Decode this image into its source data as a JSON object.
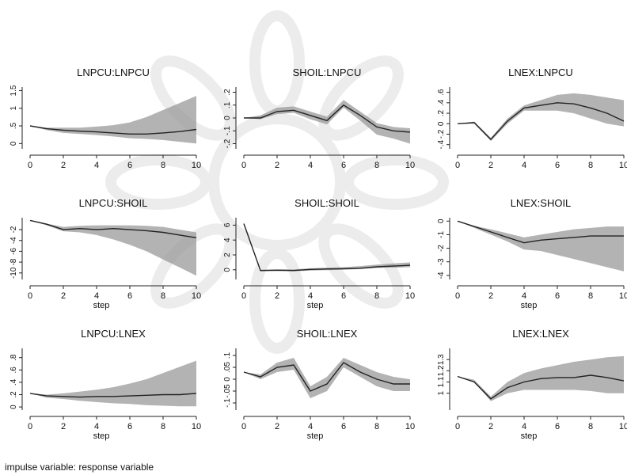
{
  "caption": "impulse variable: response variable",
  "chart_data": [
    {
      "type": "area",
      "title": "LNPCU:LNPCU",
      "xlabel": "",
      "x": [
        0,
        1,
        2,
        3,
        4,
        5,
        6,
        7,
        8,
        9,
        10
      ],
      "xticks": [
        0,
        2,
        4,
        6,
        8,
        10
      ],
      "ylim": [
        -0.15,
        1.6
      ],
      "yticks": [
        {
          "v": 0,
          "t": "0"
        },
        {
          "v": 0.5,
          "t": ".5"
        },
        {
          "v": 1,
          "t": "1"
        },
        {
          "v": 1.5,
          "t": "1.5"
        }
      ],
      "line": [
        0.5,
        0.42,
        0.38,
        0.35,
        0.33,
        0.3,
        0.27,
        0.27,
        0.3,
        0.34,
        0.4
      ],
      "lower": [
        0.5,
        0.38,
        0.3,
        0.27,
        0.24,
        0.2,
        0.15,
        0.13,
        0.1,
        0.05,
        0.0
      ],
      "upper": [
        0.5,
        0.45,
        0.45,
        0.45,
        0.48,
        0.52,
        0.6,
        0.75,
        0.95,
        1.15,
        1.35
      ]
    },
    {
      "type": "area",
      "title": "SHOIL:LNPCU",
      "xlabel": "",
      "x": [
        0,
        1,
        2,
        3,
        4,
        5,
        6,
        7,
        8,
        9,
        10
      ],
      "xticks": [
        0,
        2,
        4,
        6,
        8,
        10
      ],
      "ylim": [
        -0.24,
        0.24
      ],
      "yticks": [
        {
          "v": -0.2,
          "t": "-.2"
        },
        {
          "v": -0.1,
          "t": "-.1"
        },
        {
          "v": 0,
          "t": "0"
        },
        {
          "v": 0.1,
          "t": ".1"
        },
        {
          "v": 0.2,
          "t": ".2"
        }
      ],
      "line": [
        0,
        0,
        0.05,
        0.06,
        0.02,
        -0.02,
        0.1,
        0.02,
        -0.07,
        -0.1,
        -0.11
      ],
      "lower": [
        0,
        -0.01,
        0.03,
        0.04,
        -0.01,
        -0.05,
        0.08,
        -0.02,
        -0.13,
        -0.16,
        -0.2
      ],
      "upper": [
        0,
        0.02,
        0.08,
        0.09,
        0.05,
        0.01,
        0.14,
        0.05,
        -0.04,
        -0.07,
        -0.08
      ]
    },
    {
      "type": "area",
      "title": "LNEX:LNPCU",
      "xlabel": "",
      "x": [
        0,
        1,
        2,
        3,
        4,
        5,
        6,
        7,
        8,
        9,
        10
      ],
      "xticks": [
        0,
        2,
        4,
        6,
        8,
        10
      ],
      "ylim": [
        -0.48,
        0.7
      ],
      "yticks": [
        {
          "v": -0.4,
          "t": "-.4"
        },
        {
          "v": -0.2,
          "t": "-.2"
        },
        {
          "v": 0,
          "t": "0"
        },
        {
          "v": 0.2,
          "t": ".2"
        },
        {
          "v": 0.4,
          "t": ".4"
        },
        {
          "v": 0.6,
          "t": ".6"
        }
      ],
      "line": [
        0,
        0.02,
        -0.3,
        0.05,
        0.3,
        0.35,
        0.4,
        0.38,
        0.3,
        0.2,
        0.05
      ],
      "lower": [
        0,
        0,
        -0.33,
        0.0,
        0.25,
        0.25,
        0.25,
        0.2,
        0.1,
        0.0,
        -0.05
      ],
      "upper": [
        0,
        0.04,
        -0.27,
        0.1,
        0.35,
        0.45,
        0.55,
        0.58,
        0.55,
        0.5,
        0.45
      ]
    },
    {
      "type": "area",
      "title": "LNPCU:SHOIL",
      "xlabel": "step",
      "x": [
        0,
        1,
        2,
        3,
        4,
        5,
        6,
        7,
        8,
        9,
        10
      ],
      "xticks": [
        0,
        2,
        4,
        6,
        8,
        10
      ],
      "ylim": [
        -11.2,
        0.2
      ],
      "yticks": [
        {
          "v": -2,
          "t": "-2"
        },
        {
          "v": -4,
          "t": "-4"
        },
        {
          "v": -6,
          "t": "-6"
        },
        {
          "v": -8,
          "t": "-8"
        },
        {
          "v": -10,
          "t": "-10"
        }
      ],
      "line": [
        -0.3,
        -1,
        -2,
        -1.8,
        -2,
        -1.8,
        -2,
        -2.2,
        -2.5,
        -3,
        -3.5
      ],
      "lower": [
        -0.3,
        -1.2,
        -2.3,
        -2.5,
        -3,
        -3.8,
        -4.8,
        -6,
        -7.5,
        -9,
        -10.5
      ],
      "upper": [
        -0.3,
        -0.9,
        -1.5,
        -1.3,
        -1.2,
        -1.2,
        -1.2,
        -1.3,
        -1.5,
        -2,
        -2.5
      ]
    },
    {
      "type": "area",
      "title": "SHOIL:SHOIL",
      "xlabel": "step",
      "x": [
        0,
        1,
        2,
        3,
        4,
        5,
        6,
        7,
        8,
        9,
        10
      ],
      "xticks": [
        0,
        2,
        4,
        6,
        8,
        10
      ],
      "ylim": [
        -1.3,
        7
      ],
      "yticks": [
        {
          "v": 0,
          "t": "0"
        },
        {
          "v": 2,
          "t": "2"
        },
        {
          "v": 4,
          "t": "4"
        },
        {
          "v": 6,
          "t": "6"
        }
      ],
      "line": [
        6.2,
        -0.1,
        -0.05,
        -0.1,
        0.05,
        0.1,
        0.15,
        0.2,
        0.4,
        0.5,
        0.6
      ],
      "lower": [
        6.2,
        -0.2,
        -0.15,
        -0.2,
        -0.1,
        -0.05,
        0,
        0.1,
        0.25,
        0.3,
        0.35
      ],
      "upper": [
        6.2,
        0,
        0.05,
        0.05,
        0.2,
        0.3,
        0.35,
        0.5,
        0.7,
        0.85,
        1.0
      ]
    },
    {
      "type": "area",
      "title": "LNEX:SHOIL",
      "xlabel": "step",
      "x": [
        0,
        1,
        2,
        3,
        4,
        5,
        6,
        7,
        8,
        9,
        10
      ],
      "xticks": [
        0,
        2,
        4,
        6,
        8,
        10
      ],
      "ylim": [
        -4.3,
        0.25
      ],
      "yticks": [
        {
          "v": 0,
          "t": "0"
        },
        {
          "v": -1,
          "t": "-1"
        },
        {
          "v": -2,
          "t": "-2"
        },
        {
          "v": -3,
          "t": "-3"
        },
        {
          "v": -4,
          "t": "-4"
        }
      ],
      "line": [
        0,
        -0.4,
        -0.8,
        -1.2,
        -1.6,
        -1.4,
        -1.3,
        -1.2,
        -1.1,
        -1.1,
        -1.1
      ],
      "lower": [
        0,
        -0.5,
        -1,
        -1.5,
        -2.1,
        -2.2,
        -2.5,
        -2.8,
        -3.1,
        -3.4,
        -3.7
      ],
      "upper": [
        0,
        -0.35,
        -0.6,
        -0.9,
        -1.2,
        -1.0,
        -0.8,
        -0.6,
        -0.5,
        -0.4,
        -0.4
      ]
    },
    {
      "type": "area",
      "title": "LNPCU:LNEX",
      "xlabel": "step",
      "x": [
        0,
        1,
        2,
        3,
        4,
        5,
        6,
        7,
        8,
        9,
        10
      ],
      "xticks": [
        0,
        2,
        4,
        6,
        8,
        10
      ],
      "ylim": [
        -0.05,
        0.95
      ],
      "yticks": [
        {
          "v": 0,
          "t": "0"
        },
        {
          "v": 0.2,
          "t": ".2"
        },
        {
          "v": 0.4,
          "t": ".4"
        },
        {
          "v": 0.6,
          "t": ".6"
        },
        {
          "v": 0.8,
          "t": ".8"
        }
      ],
      "line": [
        0.22,
        0.18,
        0.17,
        0.16,
        0.17,
        0.17,
        0.18,
        0.19,
        0.2,
        0.2,
        0.22
      ],
      "lower": [
        0.22,
        0.15,
        0.13,
        0.1,
        0.08,
        0.06,
        0.05,
        0.03,
        0.02,
        0.01,
        0.01
      ],
      "upper": [
        0.22,
        0.2,
        0.22,
        0.25,
        0.28,
        0.32,
        0.38,
        0.45,
        0.55,
        0.65,
        0.75
      ]
    },
    {
      "type": "area",
      "title": "SHOIL:LNEX",
      "xlabel": "step",
      "x": [
        0,
        1,
        2,
        3,
        4,
        5,
        6,
        7,
        8,
        9,
        10
      ],
      "xticks": [
        0,
        2,
        4,
        6,
        8,
        10
      ],
      "ylim": [
        -0.13,
        0.13
      ],
      "yticks": [
        {
          "v": -0.1,
          "t": "-.1"
        },
        {
          "v": -0.05,
          "t": "-.05"
        },
        {
          "v": 0,
          "t": "0"
        },
        {
          "v": 0.05,
          "t": ".05"
        },
        {
          "v": 0.1,
          "t": ".1"
        }
      ],
      "line": [
        0.03,
        0.01,
        0.05,
        0.06,
        -0.05,
        -0.02,
        0.07,
        0.03,
        0,
        -0.02,
        -0.02
      ],
      "lower": [
        0.03,
        0,
        0.03,
        0.04,
        -0.08,
        -0.05,
        0.05,
        0.01,
        -0.03,
        -0.05,
        -0.05
      ],
      "upper": [
        0.03,
        0.02,
        0.07,
        0.09,
        -0.03,
        0.01,
        0.09,
        0.06,
        0.03,
        0.01,
        0
      ]
    },
    {
      "type": "area",
      "title": "LNEX:LNEX",
      "xlabel": "step",
      "x": [
        0,
        1,
        2,
        3,
        4,
        5,
        6,
        7,
        8,
        9,
        10
      ],
      "xticks": [
        0,
        2,
        4,
        6,
        8,
        10
      ],
      "ylim": [
        0.85,
        1.4
      ],
      "yticks": [
        {
          "v": 1.0,
          "t": "1"
        },
        {
          "v": 1.1,
          "t": "1.1"
        },
        {
          "v": 1.2,
          "t": "1.2"
        },
        {
          "v": 1.3,
          "t": "1.3"
        }
      ],
      "line": [
        1.15,
        1.1,
        0.95,
        1.05,
        1.1,
        1.13,
        1.14,
        1.14,
        1.16,
        1.14,
        1.11
      ],
      "lower": [
        1.15,
        1.1,
        0.93,
        1.0,
        1.03,
        1.03,
        1.03,
        1.03,
        1.02,
        1.0,
        1.0
      ],
      "upper": [
        1.15,
        1.12,
        0.97,
        1.1,
        1.18,
        1.22,
        1.25,
        1.28,
        1.3,
        1.32,
        1.33
      ]
    }
  ]
}
